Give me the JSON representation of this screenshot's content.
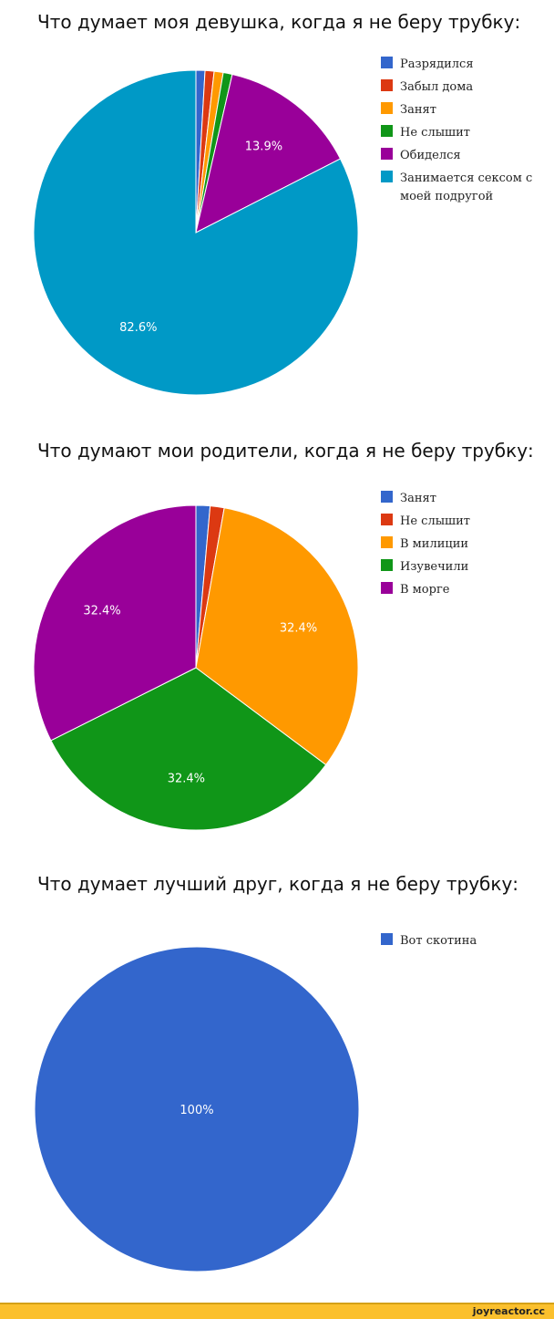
{
  "colors": {
    "blue": "#3366cc",
    "red": "#dc3912",
    "orange": "#ff9900",
    "green": "#109618",
    "purple": "#990099",
    "teal": "#0099c6",
    "label_text": "#ffffff",
    "footer_bg": "#fbc02d"
  },
  "chart_data": [
    {
      "type": "pie",
      "title": "Что думает моя девушка, когда я не беру трубку:",
      "legend_position": "right",
      "slices": [
        {
          "label": "Разрядился",
          "value": 0.9,
          "color": "#3366cc",
          "value_label": ""
        },
        {
          "label": "Забыл дома",
          "value": 0.9,
          "color": "#dc3912",
          "value_label": ""
        },
        {
          "label": "Занят",
          "value": 0.9,
          "color": "#ff9900",
          "value_label": ""
        },
        {
          "label": "Не слышит",
          "value": 0.9,
          "color": "#109618",
          "value_label": ""
        },
        {
          "label": "Обиделся",
          "value": 13.9,
          "color": "#990099",
          "value_label": "13.9%"
        },
        {
          "label": "Занимается сексом с моей подругой",
          "value": 82.6,
          "color": "#0099c6",
          "value_label": "82.6%"
        }
      ]
    },
    {
      "type": "pie",
      "title": "Что думают мои родители, когда я не беру трубку:",
      "legend_position": "right",
      "slices": [
        {
          "label": "Занят",
          "value": 1.4,
          "color": "#3366cc",
          "value_label": ""
        },
        {
          "label": "Не слышит",
          "value": 1.4,
          "color": "#dc3912",
          "value_label": ""
        },
        {
          "label": "В милиции",
          "value": 32.4,
          "color": "#ff9900",
          "value_label": "32.4%"
        },
        {
          "label": "Изувечили",
          "value": 32.4,
          "color": "#109618",
          "value_label": "32.4%"
        },
        {
          "label": "В морге",
          "value": 32.4,
          "color": "#990099",
          "value_label": "32.4%"
        }
      ]
    },
    {
      "type": "pie",
      "title": "Что думает лучший друг, когда я не беру трубку:",
      "legend_position": "right",
      "slices": [
        {
          "label": "Вот скотина",
          "value": 100,
          "color": "#3366cc",
          "value_label": "100%"
        }
      ]
    }
  ],
  "footer": {
    "site": "joyreactor.cc"
  }
}
